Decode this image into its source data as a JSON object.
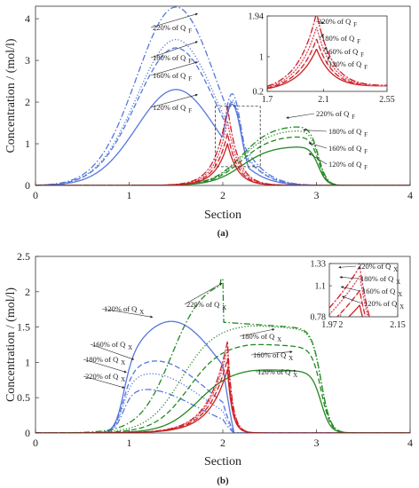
{
  "colors": {
    "blue": "#5577dd",
    "green": "#228822",
    "red": "#cc2222",
    "pink": "#f3a7c8",
    "axis": "#333333"
  },
  "chart_data": [
    {
      "id": "a",
      "type": "line",
      "panel_label": "(a)",
      "xlabel": "Section",
      "ylabel": "Concentration / (mol/l)",
      "xlim": [
        0,
        4
      ],
      "ylim": [
        0,
        4.3
      ],
      "xticks": [
        0,
        1,
        2,
        3,
        4
      ],
      "yticks": [
        0,
        1,
        2,
        3,
        4
      ],
      "grid": false,
      "series": [
        {
          "family": "blue",
          "style": "solid",
          "peak": 2.3,
          "bump": 1.95
        },
        {
          "family": "blue",
          "style": "dashed",
          "peak": 3.3,
          "bump": 2.0
        },
        {
          "family": "blue",
          "style": "dotted",
          "peak": 3.5,
          "bump": 2.05
        },
        {
          "family": "blue",
          "style": "dashdot",
          "peak": 4.28,
          "bump": 2.2
        },
        {
          "family": "green",
          "style": "solid",
          "peak": 0.95
        },
        {
          "family": "green",
          "style": "dashed",
          "peak": 1.2
        },
        {
          "family": "green",
          "style": "dotted",
          "peak": 1.35
        },
        {
          "family": "green",
          "style": "dashdot",
          "peak": 1.45
        },
        {
          "family": "red",
          "style": "solid",
          "peak": 1.0
        },
        {
          "family": "red",
          "style": "dashed",
          "peak": 1.25
        },
        {
          "family": "red",
          "style": "dotted",
          "peak": 1.55
        },
        {
          "family": "red",
          "style": "dashdot",
          "peak": 1.9
        }
      ],
      "annotations": [
        {
          "text": "220% of Q",
          "sub": "F",
          "x": 1.6,
          "y": 4.02
        },
        {
          "text": "180% of Q",
          "sub": "F",
          "x": 1.6,
          "y": 3.35
        },
        {
          "text": "160% of Q",
          "sub": "F",
          "x": 1.6,
          "y": 2.82
        },
        {
          "text": "120% of Q",
          "sub": "F",
          "x": 1.6,
          "y": 2.02
        },
        {
          "text": "220% of Q",
          "sub": "F",
          "x": 2.95,
          "y": 1.72
        },
        {
          "text": "180% of Q",
          "sub": "F",
          "x": 3.15,
          "y": 1.42
        },
        {
          "text": "160% of Q",
          "sub": "F",
          "x": 3.15,
          "y": 1.05
        },
        {
          "text": "120% of Q",
          "sub": "F",
          "x": 3.15,
          "y": 0.72
        }
      ],
      "inset": {
        "xlim": [
          1.7,
          2.55
        ],
        "ylim": [
          0.2,
          1.94
        ],
        "xticks": [
          1.7,
          2.1,
          2.55
        ],
        "yticks": [
          0.2,
          1,
          1.94
        ],
        "annotations": [
          {
            "text": "220% of Q",
            "sub": "F"
          },
          {
            "text": "180% of Q",
            "sub": "F"
          },
          {
            "text": "160% of Q",
            "sub": "F"
          },
          {
            "text": "120% of Q",
            "sub": "F"
          }
        ]
      }
    },
    {
      "id": "b",
      "type": "line",
      "panel_label": "(b)",
      "xlabel": "Section",
      "ylabel": "Concentration / (mol/l)",
      "xlim": [
        0,
        4
      ],
      "ylim": [
        0,
        2.5
      ],
      "xticks": [
        0,
        1,
        2,
        3,
        4
      ],
      "yticks": [
        0,
        0.5,
        1,
        1.5,
        2,
        2.5
      ],
      "grid": false,
      "series": [
        {
          "family": "blue",
          "style": "solid",
          "peak": 1.58
        },
        {
          "family": "blue",
          "style": "dashed",
          "peak": 1.02
        },
        {
          "family": "blue",
          "style": "dotted",
          "peak": 0.84
        },
        {
          "family": "blue",
          "style": "dashdot",
          "peak": 0.62
        },
        {
          "family": "green",
          "style": "solid",
          "peak": 0.92
        },
        {
          "family": "green",
          "style": "dashed",
          "peak": 1.28
        },
        {
          "family": "green",
          "style": "dotted",
          "peak": 1.54
        },
        {
          "family": "green",
          "style": "dashdot",
          "peak": 2.18
        },
        {
          "family": "red",
          "style": "solid",
          "peak": 0.9
        },
        {
          "family": "red",
          "style": "dashed",
          "peak": 1.05
        },
        {
          "family": "red",
          "style": "dotted",
          "peak": 1.2
        },
        {
          "family": "red",
          "style": "dashdot",
          "peak": 1.3
        }
      ],
      "annotations": [
        {
          "text": "120% of Q",
          "sub": "X",
          "x": 1.1,
          "y": 1.7
        },
        {
          "text": "160% of Q",
          "sub": "X",
          "x": 0.87,
          "y": 1.22
        },
        {
          "text": "180% of Q",
          "sub": "X",
          "x": 0.77,
          "y": 0.98
        },
        {
          "text": "220% of Q",
          "sub": "X",
          "x": 0.77,
          "y": 0.68
        },
        {
          "text": "220% of Q",
          "sub": "X",
          "x": 2.1,
          "y": 1.98
        },
        {
          "text": "180% of Q",
          "sub": "X",
          "x": 2.65,
          "y": 1.35
        },
        {
          "text": "160% of Q",
          "sub": "X",
          "x": 2.85,
          "y": 1.05
        },
        {
          "text": "120% of Q",
          "sub": "X",
          "x": 2.85,
          "y": 0.7
        }
      ],
      "inset": {
        "xlim": [
          1.97,
          2.15
        ],
        "ylim": [
          0.78,
          1.33
        ],
        "xticks": [
          1.97,
          2,
          2.15
        ],
        "yticks": [
          0.78,
          1.1,
          1.33
        ],
        "annotations": [
          {
            "text": "220% of Q",
            "sub": "X"
          },
          {
            "text": "180% of Q",
            "sub": "X"
          },
          {
            "text": "160% of Q",
            "sub": "X"
          },
          {
            "text": "120% of Q",
            "sub": "X"
          }
        ]
      }
    }
  ]
}
